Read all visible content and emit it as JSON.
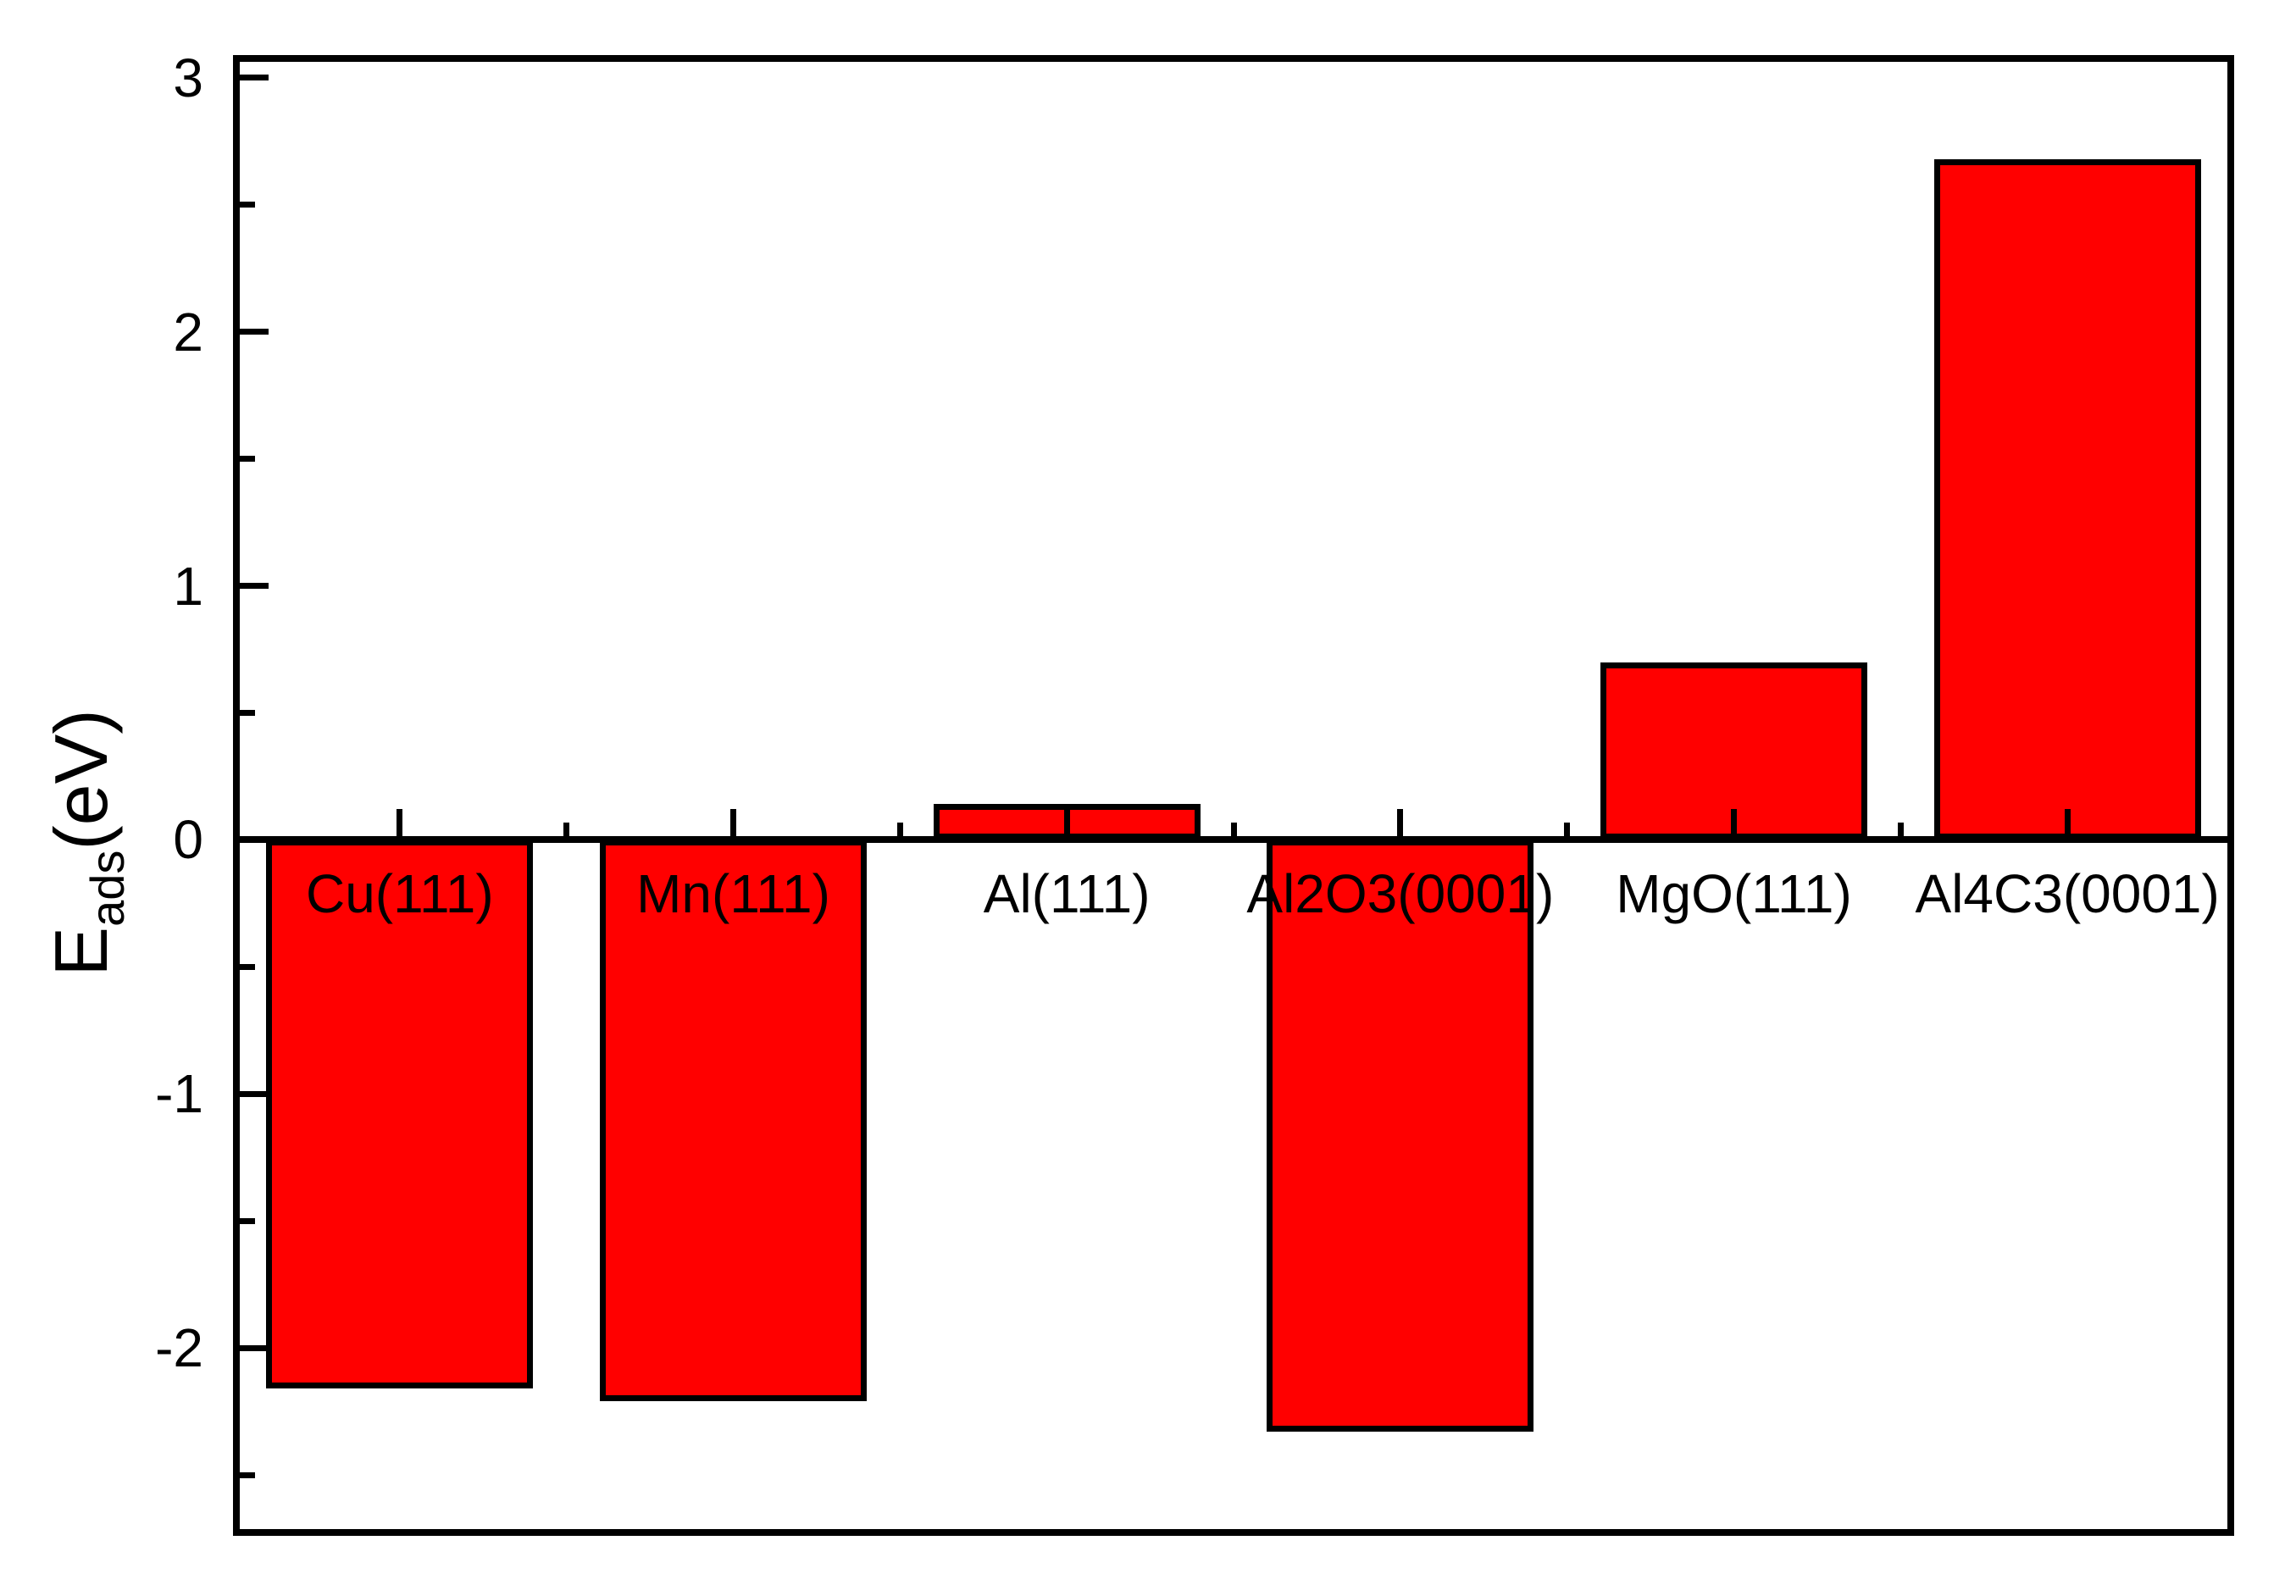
{
  "figure": {
    "background": "#FFFFFF",
    "y_axis_title": {
      "main": "E",
      "subscript": "ads",
      "unit": "(eV)"
    }
  },
  "chart_data": {
    "type": "bar",
    "title": "",
    "xlabel": "",
    "ylabel": "E_ads(eV)",
    "categories": [
      "Cu(111)",
      "Mn(111)",
      "Al(111)",
      "Al2O3(0001)",
      "MgO(111)",
      "Al4C3(0001)"
    ],
    "values": [
      -2.16,
      -2.21,
      0.14,
      -2.33,
      0.7,
      2.68
    ],
    "baseline": 0,
    "ylim": [
      -2.74,
      3.09
    ],
    "yticks_major": [
      3,
      2,
      1,
      0,
      -1,
      -2
    ],
    "ytick_labels": [
      "3",
      "2",
      "1",
      "0",
      "-1",
      "-2"
    ],
    "yticks_minor": [
      2.5,
      1.5,
      0.5,
      -0.5,
      -1.5,
      -2.5
    ],
    "xticks_major": "category-centers",
    "xticks_minor": "category-boundaries",
    "bar_width_fraction": 0.8,
    "grid": false,
    "legend": "none",
    "colors": {
      "bar_fill": "#FF0000",
      "bar_border": "#000000",
      "axis": "#000000",
      "text": "#000000"
    }
  }
}
